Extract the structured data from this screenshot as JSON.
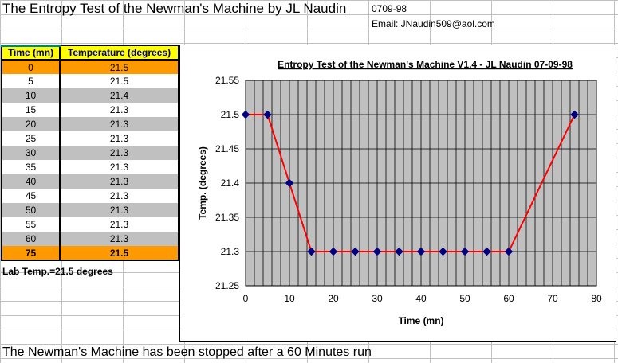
{
  "sheet": {
    "title": "The Entropy Test of the Newman's Machine by JL Naudin",
    "date": "0709-98",
    "email": "Email: JNaudin509@aol.com",
    "lab_temp": "Lab Temp.=21.5 degrees",
    "footer": "The Newman's Machine has been stopped after a 60 Minutes run"
  },
  "table": {
    "headers": [
      "Time (mn)",
      "Temperature (degrees)"
    ],
    "rows": [
      {
        "time": "0",
        "temp": "21.5"
      },
      {
        "time": "5",
        "temp": "21.5"
      },
      {
        "time": "10",
        "temp": "21.4"
      },
      {
        "time": "15",
        "temp": "21.3"
      },
      {
        "time": "20",
        "temp": "21.3"
      },
      {
        "time": "25",
        "temp": "21.3"
      },
      {
        "time": "30",
        "temp": "21.3"
      },
      {
        "time": "35",
        "temp": "21.3"
      },
      {
        "time": "40",
        "temp": "21.3"
      },
      {
        "time": "45",
        "temp": "21.3"
      },
      {
        "time": "50",
        "temp": "21.3"
      },
      {
        "time": "55",
        "temp": "21.3"
      },
      {
        "time": "60",
        "temp": "21.3"
      },
      {
        "time": "75",
        "temp": "21.5"
      }
    ]
  },
  "chart_data": {
    "type": "line",
    "title": "Entropy Test of the Newman's Machine V1.4 - JL Naudin 07-09-98",
    "xlabel": "Time (mn)",
    "ylabel": "Temp. (degrees)",
    "x": [
      0,
      5,
      10,
      15,
      20,
      25,
      30,
      35,
      40,
      45,
      50,
      55,
      60,
      75
    ],
    "series": [
      {
        "values": [
          21.5,
          21.5,
          21.4,
          21.3,
          21.3,
          21.3,
          21.3,
          21.3,
          21.3,
          21.3,
          21.3,
          21.3,
          21.3,
          21.5
        ]
      }
    ],
    "xlim": [
      0,
      80
    ],
    "ylim": [
      21.25,
      21.55
    ],
    "xticks": [
      "0",
      "10",
      "20",
      "30",
      "40",
      "50",
      "60",
      "70",
      "80"
    ],
    "yticks": [
      "21.25",
      "21.3",
      "21.35",
      "21.4",
      "21.45",
      "21.5",
      "21.55"
    ],
    "grid": true,
    "colors": {
      "plot_bg": "#c0c0c0",
      "line": "#ff0000",
      "marker": "#000080"
    }
  }
}
